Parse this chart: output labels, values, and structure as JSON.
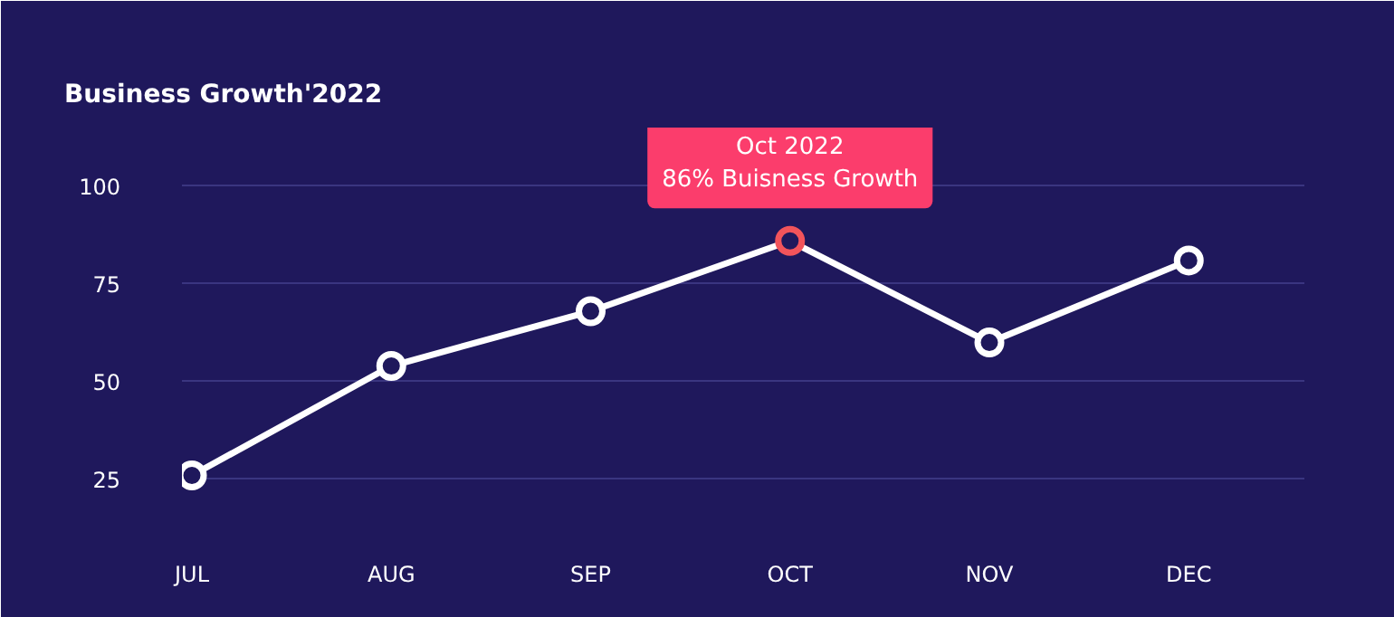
{
  "chart_data": {
    "type": "line",
    "title": "Business Growth'2022",
    "categories": [
      "JUL",
      "AUG",
      "SEP",
      "OCT",
      "NOV",
      "DEC"
    ],
    "series": [
      {
        "color": "#ffffff",
        "values": [
          26,
          54,
          68,
          86,
          60,
          81
        ],
        "colors": [
          "#ffffff",
          "#ffffff",
          "#ffffff",
          "#f2545b",
          "#ffffff",
          "#ffffff"
        ]
      }
    ],
    "ylim": [
      15,
      115
    ],
    "yticks": [
      25,
      50,
      75,
      100
    ],
    "grid": "y",
    "marker": "circle",
    "line_style": "solid",
    "annotations": [
      {
        "text": "Oct 2022\n86% Buisness Growth",
        "x": "OCT",
        "y": 86
      }
    ]
  }
}
